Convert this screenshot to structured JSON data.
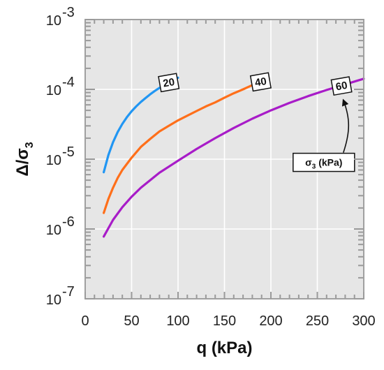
{
  "chart_data": {
    "type": "line",
    "title": "",
    "xlabel": "q (kPa)",
    "ylabel": "Δ/σ3",
    "xlim": [
      0,
      300
    ],
    "ylim": [
      1e-07,
      0.001
    ],
    "yscale": "log",
    "grid": true,
    "x_ticks": [
      0,
      50,
      100,
      150,
      200,
      250,
      300
    ],
    "x_tick_labels": [
      "0",
      "50",
      "100",
      "150",
      "200",
      "250",
      "300"
    ],
    "y_ticks": [
      1e-07,
      1e-06,
      1e-05,
      0.0001,
      0.001
    ],
    "y_tick_labels": [
      {
        "base": "10",
        "exp": "-7"
      },
      {
        "base": "10",
        "exp": "-6"
      },
      {
        "base": "10",
        "exp": "-5"
      },
      {
        "base": "10",
        "exp": "-4"
      },
      {
        "base": "10",
        "exp": "-3"
      }
    ],
    "series": [
      {
        "label": "20",
        "color": "#2196F3",
        "x": [
          20,
          25,
          30,
          35,
          40,
          45,
          50,
          55,
          60,
          65,
          70,
          75,
          80,
          85,
          90,
          95,
          100
        ],
        "y": [
          6.5e-06,
          1.15e-05,
          1.75e-05,
          2.45e-05,
          3.2e-05,
          4e-05,
          4.85e-05,
          5.7e-05,
          6.6e-05,
          7.5e-05,
          8.5e-05,
          9.5e-05,
          0.000105,
          0.000115,
          0.000125,
          0.000136,
          0.000147
        ]
      },
      {
        "label": "40",
        "color": "#FF6F1A",
        "x": [
          20,
          25,
          30,
          35,
          40,
          50,
          60,
          70,
          80,
          90,
          100,
          110,
          120,
          130,
          140,
          150,
          160,
          170,
          180
        ],
        "y": [
          1.7e-06,
          2.7e-06,
          3.9e-06,
          5.4e-06,
          7e-06,
          1.05e-05,
          1.5e-05,
          1.95e-05,
          2.5e-05,
          3e-05,
          3.6e-05,
          4.2e-05,
          4.9e-05,
          5.7e-05,
          6.5e-05,
          7.6e-05,
          8.8e-05,
          0.0001,
          0.000115
        ]
      },
      {
        "label": "60",
        "color": "#A81CC8",
        "x": [
          20,
          30,
          40,
          50,
          60,
          70,
          80,
          90,
          100,
          120,
          140,
          160,
          180,
          200,
          220,
          240,
          260,
          280,
          300
        ],
        "y": [
          7.8e-07,
          1.35e-06,
          2.05e-06,
          2.9e-06,
          3.9e-06,
          5e-06,
          6.4e-06,
          7.8e-06,
          9.5e-06,
          1.4e-05,
          2e-05,
          2.8e-05,
          3.8e-05,
          5e-05,
          6.4e-05,
          8e-05,
          9.8e-05,
          0.000118,
          0.000142
        ]
      }
    ],
    "curve_labels": [
      {
        "text": "20",
        "x": 90,
        "y": 0.000125
      },
      {
        "text": "40",
        "x": 189,
        "y": 0.000128
      },
      {
        "text": "60",
        "x": 276,
        "y": 0.000112
      }
    ],
    "annotation": {
      "text_prefix": "σ",
      "text_sub": "3",
      "text_suffix": " (kPa)",
      "box_x": 257,
      "box_y": 9e-06,
      "arrow_to_x": 278,
      "arrow_to_y": 7.7e-05
    }
  }
}
